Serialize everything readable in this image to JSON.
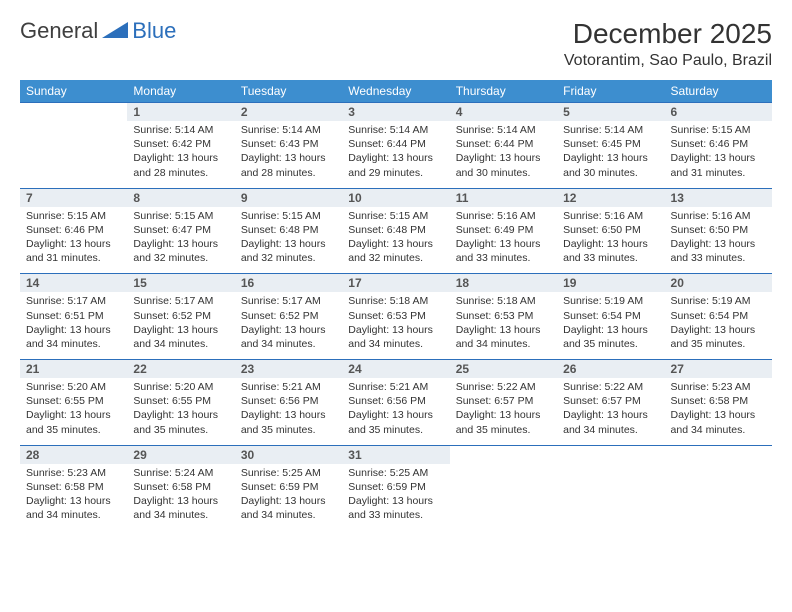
{
  "logo": {
    "general": "General",
    "blue": "Blue"
  },
  "title": {
    "month": "December 2025",
    "location": "Votorantim, Sao Paulo, Brazil"
  },
  "colors": {
    "header_bg": "#3d8ecf",
    "header_text": "#ffffff",
    "daynum_bg": "#e9eef3",
    "border": "#2c6fbb",
    "text": "#333333",
    "logo_gray": "#3f3f3f",
    "logo_blue": "#2c6fbb"
  },
  "weekdays": [
    "Sunday",
    "Monday",
    "Tuesday",
    "Wednesday",
    "Thursday",
    "Friday",
    "Saturday"
  ],
  "start_offset": 1,
  "days": [
    {
      "n": 1,
      "sr": "5:14 AM",
      "ss": "6:42 PM",
      "dl": "13 hours and 28 minutes."
    },
    {
      "n": 2,
      "sr": "5:14 AM",
      "ss": "6:43 PM",
      "dl": "13 hours and 28 minutes."
    },
    {
      "n": 3,
      "sr": "5:14 AM",
      "ss": "6:44 PM",
      "dl": "13 hours and 29 minutes."
    },
    {
      "n": 4,
      "sr": "5:14 AM",
      "ss": "6:44 PM",
      "dl": "13 hours and 30 minutes."
    },
    {
      "n": 5,
      "sr": "5:14 AM",
      "ss": "6:45 PM",
      "dl": "13 hours and 30 minutes."
    },
    {
      "n": 6,
      "sr": "5:15 AM",
      "ss": "6:46 PM",
      "dl": "13 hours and 31 minutes."
    },
    {
      "n": 7,
      "sr": "5:15 AM",
      "ss": "6:46 PM",
      "dl": "13 hours and 31 minutes."
    },
    {
      "n": 8,
      "sr": "5:15 AM",
      "ss": "6:47 PM",
      "dl": "13 hours and 32 minutes."
    },
    {
      "n": 9,
      "sr": "5:15 AM",
      "ss": "6:48 PM",
      "dl": "13 hours and 32 minutes."
    },
    {
      "n": 10,
      "sr": "5:15 AM",
      "ss": "6:48 PM",
      "dl": "13 hours and 32 minutes."
    },
    {
      "n": 11,
      "sr": "5:16 AM",
      "ss": "6:49 PM",
      "dl": "13 hours and 33 minutes."
    },
    {
      "n": 12,
      "sr": "5:16 AM",
      "ss": "6:50 PM",
      "dl": "13 hours and 33 minutes."
    },
    {
      "n": 13,
      "sr": "5:16 AM",
      "ss": "6:50 PM",
      "dl": "13 hours and 33 minutes."
    },
    {
      "n": 14,
      "sr": "5:17 AM",
      "ss": "6:51 PM",
      "dl": "13 hours and 34 minutes."
    },
    {
      "n": 15,
      "sr": "5:17 AM",
      "ss": "6:52 PM",
      "dl": "13 hours and 34 minutes."
    },
    {
      "n": 16,
      "sr": "5:17 AM",
      "ss": "6:52 PM",
      "dl": "13 hours and 34 minutes."
    },
    {
      "n": 17,
      "sr": "5:18 AM",
      "ss": "6:53 PM",
      "dl": "13 hours and 34 minutes."
    },
    {
      "n": 18,
      "sr": "5:18 AM",
      "ss": "6:53 PM",
      "dl": "13 hours and 34 minutes."
    },
    {
      "n": 19,
      "sr": "5:19 AM",
      "ss": "6:54 PM",
      "dl": "13 hours and 35 minutes."
    },
    {
      "n": 20,
      "sr": "5:19 AM",
      "ss": "6:54 PM",
      "dl": "13 hours and 35 minutes."
    },
    {
      "n": 21,
      "sr": "5:20 AM",
      "ss": "6:55 PM",
      "dl": "13 hours and 35 minutes."
    },
    {
      "n": 22,
      "sr": "5:20 AM",
      "ss": "6:55 PM",
      "dl": "13 hours and 35 minutes."
    },
    {
      "n": 23,
      "sr": "5:21 AM",
      "ss": "6:56 PM",
      "dl": "13 hours and 35 minutes."
    },
    {
      "n": 24,
      "sr": "5:21 AM",
      "ss": "6:56 PM",
      "dl": "13 hours and 35 minutes."
    },
    {
      "n": 25,
      "sr": "5:22 AM",
      "ss": "6:57 PM",
      "dl": "13 hours and 35 minutes."
    },
    {
      "n": 26,
      "sr": "5:22 AM",
      "ss": "6:57 PM",
      "dl": "13 hours and 34 minutes."
    },
    {
      "n": 27,
      "sr": "5:23 AM",
      "ss": "6:58 PM",
      "dl": "13 hours and 34 minutes."
    },
    {
      "n": 28,
      "sr": "5:23 AM",
      "ss": "6:58 PM",
      "dl": "13 hours and 34 minutes."
    },
    {
      "n": 29,
      "sr": "5:24 AM",
      "ss": "6:58 PM",
      "dl": "13 hours and 34 minutes."
    },
    {
      "n": 30,
      "sr": "5:25 AM",
      "ss": "6:59 PM",
      "dl": "13 hours and 34 minutes."
    },
    {
      "n": 31,
      "sr": "5:25 AM",
      "ss": "6:59 PM",
      "dl": "13 hours and 33 minutes."
    }
  ],
  "labels": {
    "sunrise": "Sunrise:",
    "sunset": "Sunset:",
    "daylight": "Daylight:"
  }
}
